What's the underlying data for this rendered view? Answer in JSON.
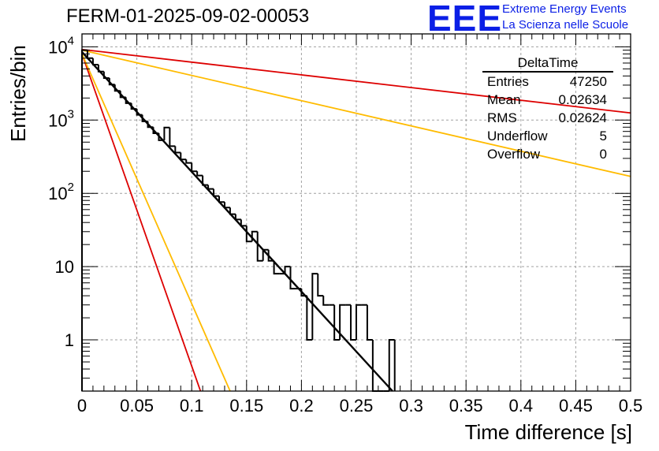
{
  "title": "FERM-01-2025-09-02-00053",
  "logo": {
    "mark": "EEE",
    "line1": "Extreme Energy Events",
    "line2": "La Scienza nelle Scuole",
    "color": "#0b1fe6"
  },
  "stats": {
    "title": "DeltaTime",
    "rows": [
      {
        "label": "Entries",
        "value": "47250"
      },
      {
        "label": "Mean",
        "value": "0.02634"
      },
      {
        "label": "RMS",
        "value": "0.02624"
      },
      {
        "label": "Underflow",
        "value": "5"
      },
      {
        "label": "Overflow",
        "value": "0"
      }
    ]
  },
  "chart_data": {
    "type": "histogram",
    "title": "FERM-01-2025-09-02-00053",
    "xlabel": "Time difference [s]",
    "ylabel": "Entries/bin",
    "xlim": [
      0,
      0.5
    ],
    "ylim": [
      0.2,
      15000
    ],
    "yscale": "log",
    "grid": true,
    "x_ticks": [
      "0",
      "0.05",
      "0.1",
      "0.15",
      "0.2",
      "0.25",
      "0.3",
      "0.35",
      "0.4",
      "0.45",
      "0.5"
    ],
    "y_ticks": [
      {
        "value": 10000,
        "base": "10",
        "exp": "4"
      },
      {
        "value": 1000,
        "base": "10",
        "exp": "3"
      },
      {
        "value": 100,
        "base": "10",
        "exp": "2"
      },
      {
        "value": 10,
        "base": "10",
        "exp": ""
      },
      {
        "value": 1,
        "base": "1",
        "exp": ""
      }
    ],
    "bin_width": 0.005,
    "histogram": {
      "name": "DeltaTime",
      "color": "#000000",
      "bins": [
        {
          "x": 0.0,
          "y": 9000
        },
        {
          "x": 0.005,
          "y": 7000
        },
        {
          "x": 0.01,
          "y": 5700
        },
        {
          "x": 0.015,
          "y": 4600
        },
        {
          "x": 0.02,
          "y": 3750
        },
        {
          "x": 0.025,
          "y": 3050
        },
        {
          "x": 0.03,
          "y": 2500
        },
        {
          "x": 0.035,
          "y": 2050
        },
        {
          "x": 0.04,
          "y": 1700
        },
        {
          "x": 0.045,
          "y": 1420
        },
        {
          "x": 0.05,
          "y": 1180
        },
        {
          "x": 0.055,
          "y": 960
        },
        {
          "x": 0.06,
          "y": 800
        },
        {
          "x": 0.065,
          "y": 660
        },
        {
          "x": 0.07,
          "y": 530
        },
        {
          "x": 0.075,
          "y": 790
        },
        {
          "x": 0.08,
          "y": 440
        },
        {
          "x": 0.085,
          "y": 360
        },
        {
          "x": 0.09,
          "y": 290
        },
        {
          "x": 0.095,
          "y": 260
        },
        {
          "x": 0.1,
          "y": 200
        },
        {
          "x": 0.105,
          "y": 175
        },
        {
          "x": 0.11,
          "y": 130
        },
        {
          "x": 0.115,
          "y": 115
        },
        {
          "x": 0.12,
          "y": 92
        },
        {
          "x": 0.125,
          "y": 76
        },
        {
          "x": 0.13,
          "y": 64
        },
        {
          "x": 0.135,
          "y": 52
        },
        {
          "x": 0.14,
          "y": 44
        },
        {
          "x": 0.145,
          "y": 36
        },
        {
          "x": 0.15,
          "y": 22
        },
        {
          "x": 0.155,
          "y": 30
        },
        {
          "x": 0.16,
          "y": 12
        },
        {
          "x": 0.165,
          "y": 17
        },
        {
          "x": 0.17,
          "y": 12
        },
        {
          "x": 0.175,
          "y": 8
        },
        {
          "x": 0.18,
          "y": 8
        },
        {
          "x": 0.185,
          "y": 10
        },
        {
          "x": 0.19,
          "y": 5
        },
        {
          "x": 0.195,
          "y": 5
        },
        {
          "x": 0.2,
          "y": 4
        },
        {
          "x": 0.205,
          "y": 1
        },
        {
          "x": 0.21,
          "y": 8
        },
        {
          "x": 0.215,
          "y": 4
        },
        {
          "x": 0.22,
          "y": 3
        },
        {
          "x": 0.225,
          "y": 3
        },
        {
          "x": 0.23,
          "y": 1
        },
        {
          "x": 0.235,
          "y": 3
        },
        {
          "x": 0.24,
          "y": 3
        },
        {
          "x": 0.245,
          "y": 1
        },
        {
          "x": 0.25,
          "y": 3
        },
        {
          "x": 0.255,
          "y": 3
        },
        {
          "x": 0.26,
          "y": 1
        },
        {
          "x": 0.265,
          "y": 0
        },
        {
          "x": 0.27,
          "y": 0
        },
        {
          "x": 0.275,
          "y": 0
        },
        {
          "x": 0.28,
          "y": 1
        }
      ]
    },
    "fit_curves": [
      {
        "name": "main-fit",
        "color": "#000000",
        "points": [
          [
            0,
            8500
          ],
          [
            0.283,
            0.2
          ]
        ]
      },
      {
        "name": "red-steep",
        "color": "#dd0000",
        "points": [
          [
            0,
            8000
          ],
          [
            0.108,
            0.2
          ]
        ]
      },
      {
        "name": "yellow-steep",
        "color": "#ffbb00",
        "points": [
          [
            0,
            8000
          ],
          [
            0.135,
            0.2
          ]
        ]
      },
      {
        "name": "red-shallow",
        "color": "#dd0000",
        "points": [
          [
            0,
            9200
          ],
          [
            0.5,
            1250
          ]
        ]
      },
      {
        "name": "yellow-shallow",
        "color": "#ffbb00",
        "points": [
          [
            0,
            9000
          ],
          [
            0.5,
            170
          ]
        ]
      }
    ]
  }
}
